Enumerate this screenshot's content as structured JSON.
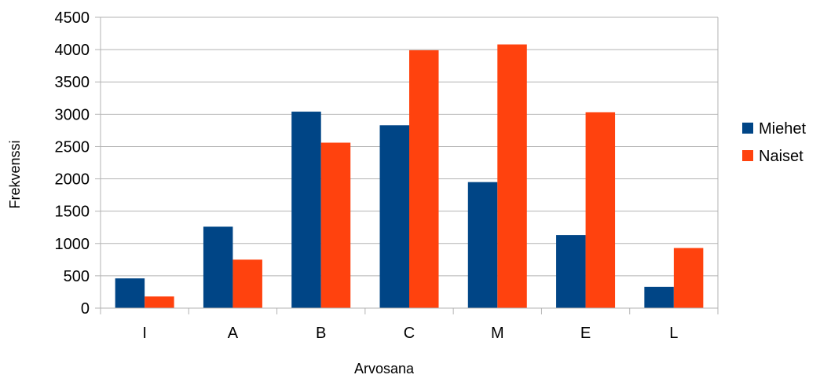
{
  "chart_data": {
    "type": "bar",
    "title": "",
    "xlabel": "Arvosana",
    "ylabel": "Frekvenssi",
    "categories": [
      "I",
      "A",
      "B",
      "C",
      "M",
      "E",
      "L"
    ],
    "series": [
      {
        "name": "Miehet",
        "color": "#004586",
        "values": [
          460,
          1260,
          3040,
          2830,
          1950,
          1130,
          330
        ]
      },
      {
        "name": "Naiset",
        "color": "#ff420e",
        "values": [
          180,
          750,
          2560,
          3990,
          4080,
          3030,
          930
        ]
      }
    ],
    "ylim": [
      0,
      4500
    ],
    "yticks": [
      0,
      500,
      1000,
      1500,
      2000,
      2500,
      3000,
      3500,
      4000,
      4500
    ],
    "grid": true,
    "legend_position": "right",
    "gridline_color": "#b3b3b3"
  }
}
